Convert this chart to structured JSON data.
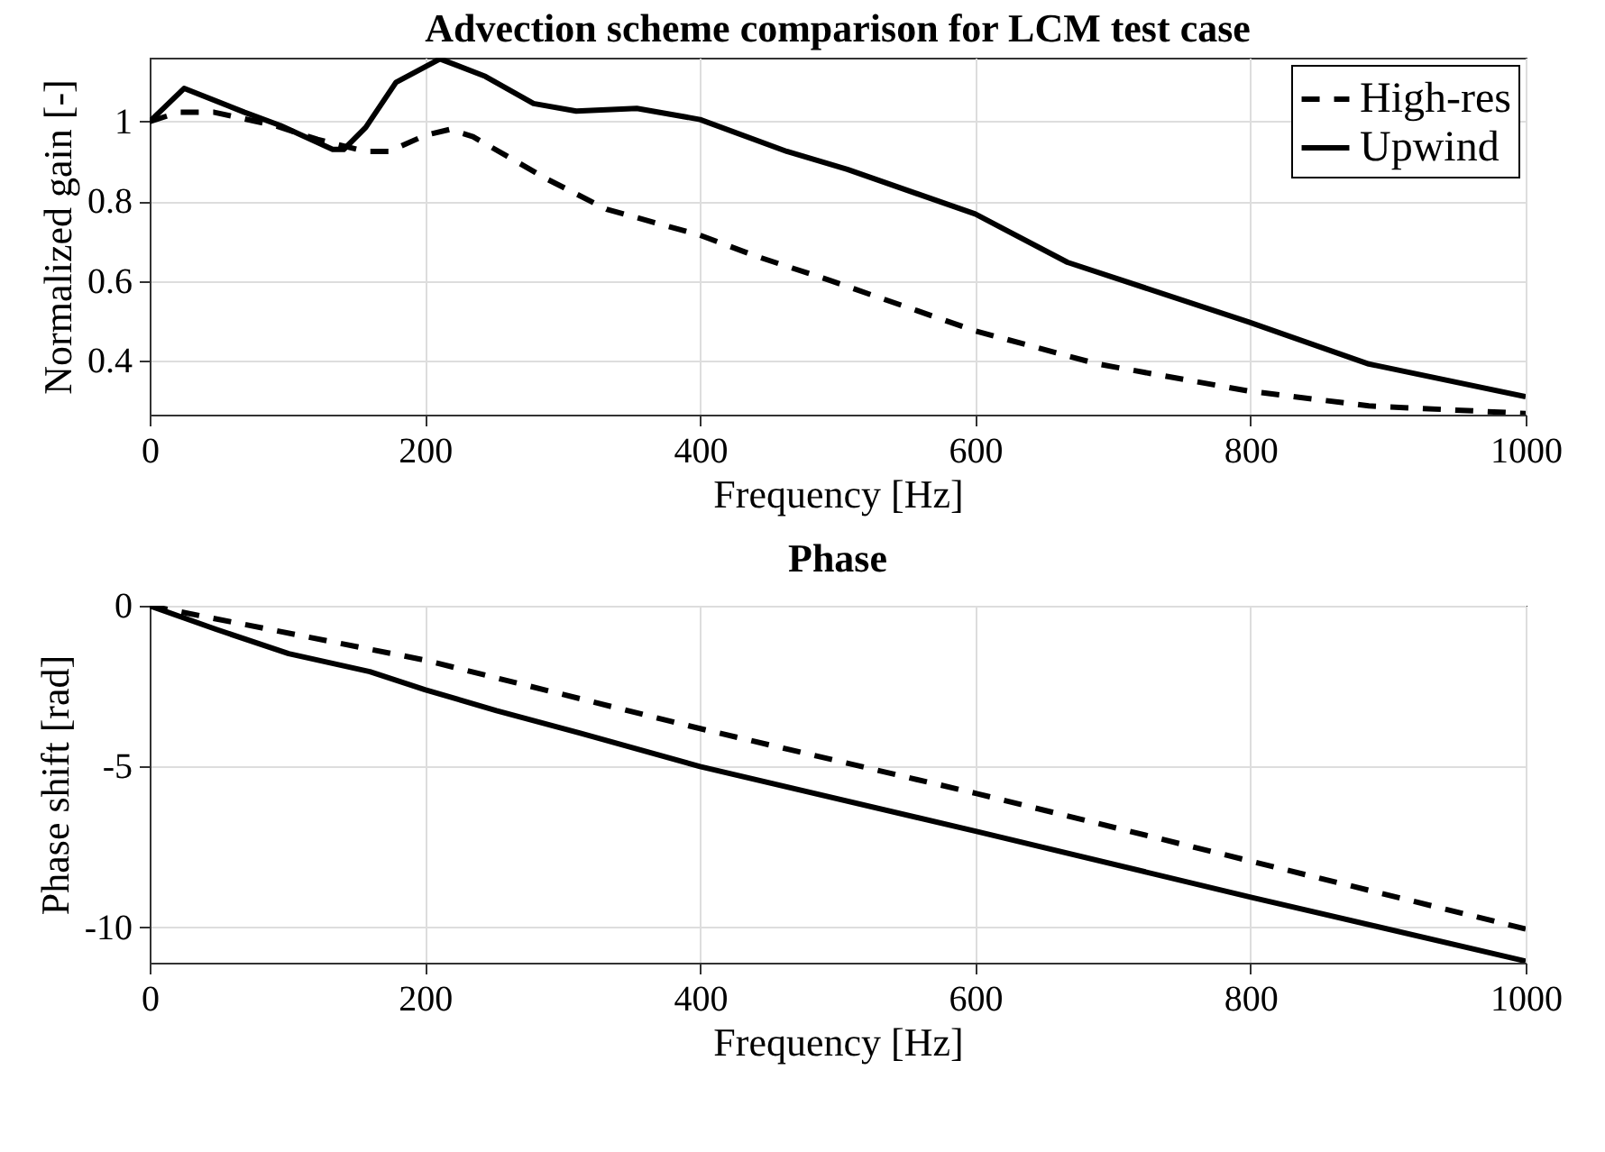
{
  "chart_data": [
    {
      "type": "line",
      "title": "Advection scheme comparison for LCM test case",
      "xlabel": "Frequency [Hz]",
      "ylabel": "Normalized gain [-]",
      "xlim": [
        0,
        1000
      ],
      "xticks": [
        0,
        200,
        400,
        600,
        800,
        1000
      ],
      "ylim": [
        0.265,
        1.16
      ],
      "yticks": [
        0.4,
        0.6,
        0.8,
        1
      ],
      "grid": true,
      "legend": "top right",
      "series": [
        {
          "name": "High-res",
          "color": "#000000",
          "line_style": "dashed",
          "x": [
            0,
            21,
            47,
            91,
            122,
            157,
            174,
            200,
            218,
            235,
            288,
            332,
            400,
            441,
            494,
            600,
            689,
            799,
            886,
            1000
          ],
          "values": [
            1.0,
            1.023,
            1.023,
            0.99,
            0.955,
            0.925,
            0.925,
            0.965,
            0.98,
            0.962,
            0.857,
            0.78,
            0.715,
            0.662,
            0.602,
            0.475,
            0.392,
            0.324,
            0.287,
            0.268
          ]
        },
        {
          "name": "Upwind",
          "color": "#000000",
          "line_style": "solid",
          "x": [
            0,
            25,
            69,
            95,
            133,
            141,
            157,
            179,
            211,
            244,
            279,
            310,
            354,
            400,
            463,
            507,
            600,
            667,
            799,
            886,
            1000
          ],
          "values": [
            1.0,
            1.083,
            1.023,
            0.99,
            0.93,
            0.93,
            0.985,
            1.098,
            1.157,
            1.113,
            1.045,
            1.026,
            1.033,
            1.005,
            0.925,
            0.88,
            0.768,
            0.647,
            0.497,
            0.392,
            0.31
          ]
        }
      ]
    },
    {
      "type": "line",
      "title": "Phase",
      "xlabel": "Frequency [Hz]",
      "ylabel": "Phase shift [rad]",
      "xlim": [
        0,
        1000
      ],
      "xticks": [
        0,
        200,
        400,
        600,
        800,
        1000
      ],
      "ylim": [
        -11.1,
        0
      ],
      "yticks": [
        -10,
        -5,
        0
      ],
      "grid": true,
      "series": [
        {
          "color": "#000000",
          "line_style": "dashed",
          "x": [
            0,
            200,
            400,
            601,
            801,
            1000
          ],
          "values": [
            0,
            -1.69,
            -3.82,
            -5.84,
            -7.95,
            -10.05
          ]
        },
        {
          "color": "#000000",
          "line_style": "solid",
          "x": [
            0,
            48,
            101,
            160,
            200,
            252,
            313,
            400,
            601,
            801,
            1000
          ],
          "values": [
            0,
            -0.73,
            -1.49,
            -2.05,
            -2.61,
            -3.26,
            -3.96,
            -5.0,
            -7.02,
            -9.07,
            -11.05
          ]
        }
      ]
    }
  ]
}
